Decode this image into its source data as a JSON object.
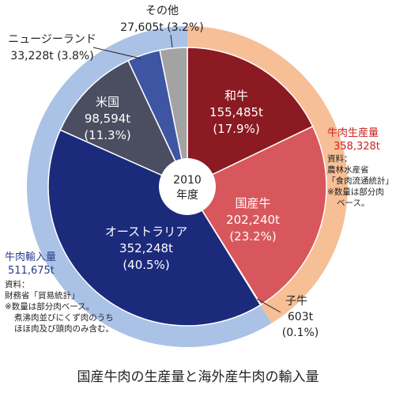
{
  "chart_data": {
    "type": "pie",
    "title": "国産牛肉の生産量と海外産牛肉の輸入量",
    "center_label": [
      "2010",
      "年度"
    ],
    "inner_ring": {
      "slices": [
        {
          "name": "和牛",
          "value": 155485,
          "value_text": "155,485t",
          "pct_text": "(17.9%)",
          "color": "#8b1a22"
        },
        {
          "name": "国産牛",
          "value": 202240,
          "value_text": "202,240t",
          "pct_text": "(23.2%)",
          "color": "#d8575c"
        },
        {
          "name": "子牛",
          "value": 603,
          "value_text": "603t",
          "pct_text": "(0.1%)",
          "color": "#f0c8a8"
        },
        {
          "name": "オーストラリア",
          "value": 352248,
          "value_text": "352,248t",
          "pct_text": "(40.5%)",
          "color": "#1c2a7c"
        },
        {
          "name": "米国",
          "value": 98594,
          "value_text": "98,594t",
          "pct_text": "(11.3%)",
          "color": "#4a4e60"
        },
        {
          "name": "ニュージーランド",
          "value": 33228,
          "value_text": "33,228t",
          "pct_text": "(3.8%)",
          "color": "#3d55a3"
        },
        {
          "name": "その他",
          "value": 27605,
          "value_text": "27,605t",
          "pct_text": "(3.2%)",
          "color": "#a3a3a3"
        }
      ]
    },
    "outer_ring": {
      "segments": [
        {
          "name": "牛肉生産量",
          "value": 358328,
          "value_text": "358,328t",
          "color": "#f7bf96"
        },
        {
          "name": "牛肉輸入量",
          "value": 511675,
          "value_text": "511,675t",
          "color": "#aac2e6"
        }
      ]
    }
  },
  "notes": {
    "production": {
      "title": "牛肉生産量",
      "value": "358,328t",
      "lines": [
        "資料：",
        "農林水産省",
        "「食肉流通統計」",
        "※数量は部分肉",
        "ベース。"
      ],
      "color": "#cc2222"
    },
    "import": {
      "title": "牛肉輸入量",
      "value": "511,675t",
      "lines": [
        "資料：",
        "財務省「貿易統計」",
        "※数量は部分肉ベース。",
        "煮沸肉並びにくず肉のうち",
        "ほほ肉及び頭肉のみ含む。"
      ],
      "color": "#2a3a8c"
    }
  },
  "caption": "国産牛肉の生産量と海外産牛肉の輸入量"
}
